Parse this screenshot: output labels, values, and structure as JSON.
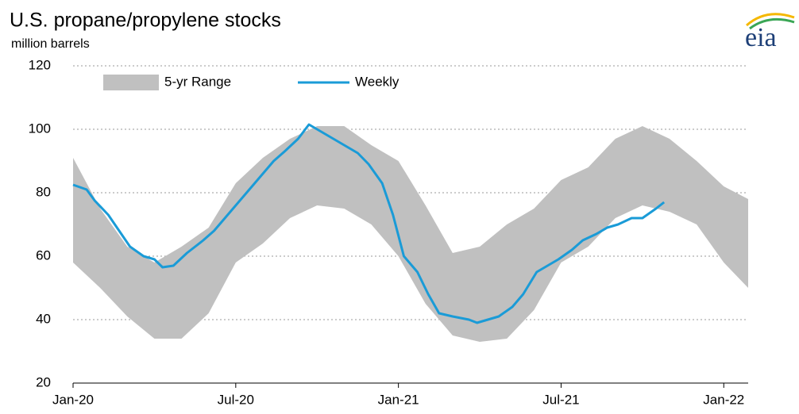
{
  "chart_data": {
    "type": "line",
    "title": "U.S. propane/propylene stocks",
    "subtitle": "million barrels",
    "logo": "eia",
    "xlim": [
      0,
      24.9
    ],
    "xticks": [
      {
        "value": 0,
        "label": "Jan-20"
      },
      {
        "value": 6,
        "label": "Jul-20"
      },
      {
        "value": 12,
        "label": "Jan-21"
      },
      {
        "value": 18,
        "label": "Jul-21"
      },
      {
        "value": 24,
        "label": "Jan-22"
      }
    ],
    "ylim": [
      20,
      120
    ],
    "yticks": [
      20,
      40,
      60,
      80,
      100,
      120
    ],
    "grid": true,
    "series": [
      {
        "name": "5-yr Range",
        "type": "range",
        "color": "#c0c0c0",
        "x": [
          0,
          1,
          2,
          3,
          4,
          5,
          6,
          7,
          8,
          9,
          10,
          11,
          12,
          13,
          14,
          15,
          16,
          17,
          18,
          19,
          20,
          21,
          22,
          23,
          24,
          24.9
        ],
        "low": [
          58,
          50,
          41,
          34,
          34,
          42,
          58,
          64,
          72,
          76,
          75,
          70,
          60,
          45,
          35,
          33,
          34,
          43,
          58,
          63,
          72,
          76,
          74,
          70,
          58,
          50
        ],
        "high": [
          91,
          75,
          63,
          58,
          63,
          69,
          83,
          91,
          97,
          101,
          101,
          95,
          90,
          76,
          61,
          63,
          70,
          75,
          84,
          88,
          97,
          101,
          97,
          90,
          82,
          78
        ]
      },
      {
        "name": "Weekly",
        "type": "line",
        "color": "#1a9bd7",
        "x": [
          0,
          0.5,
          0.8,
          1.3,
          1.7,
          2.1,
          2.6,
          3.0,
          3.3,
          3.7,
          4.2,
          4.8,
          5.2,
          5.8,
          6.4,
          7.0,
          7.4,
          7.8,
          8.3,
          8.7,
          9.2,
          9.6,
          10.0,
          10.5,
          10.9,
          11.4,
          11.8,
          12.2,
          12.7,
          13.1,
          13.5,
          14.0,
          14.6,
          14.9,
          15.3,
          15.7,
          16.2,
          16.6,
          17.1,
          17.5,
          17.9,
          18.4,
          18.8,
          19.3,
          19.7,
          20.1,
          20.6,
          21.0,
          21.5,
          21.8
        ],
        "values": [
          82.5,
          81,
          77.5,
          73,
          68,
          63,
          60,
          59,
          56.5,
          57,
          61,
          65,
          68,
          74,
          80,
          86,
          90,
          93,
          97,
          101.5,
          99,
          97,
          95,
          92.5,
          89,
          83,
          73,
          60,
          55,
          48,
          42,
          41,
          40,
          39,
          40,
          41,
          44,
          48,
          55,
          57,
          59,
          62,
          65,
          67,
          69,
          70,
          72,
          72,
          75,
          77
        ]
      }
    ]
  }
}
